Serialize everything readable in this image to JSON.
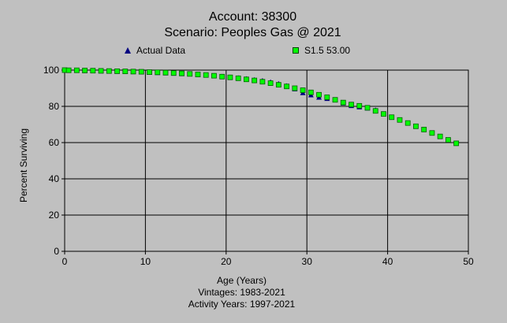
{
  "chart_data": {
    "type": "scatter",
    "title": "Account: 38300",
    "subtitle": "Scenario: Peoples Gas @ 2021",
    "xlabel": "Age (Years)",
    "ylabel": "Percent Surviving",
    "footer": [
      "Vintages: 1983-2021",
      "Activity Years: 1997-2021"
    ],
    "xlim": [
      0,
      50
    ],
    "ylim": [
      0,
      100
    ],
    "xticks": [
      0,
      10,
      20,
      30,
      40,
      50
    ],
    "yticks": [
      0,
      20,
      40,
      60,
      80,
      100
    ],
    "grid": true,
    "legend_position": "top",
    "series": [
      {
        "name": "Actual Data",
        "marker": "triangle",
        "color": "#000080",
        "x": [
          0,
          0.5,
          1.5,
          2.5,
          3.5,
          4.5,
          5.5,
          6.5,
          7.5,
          8.5,
          9.5,
          10.5,
          11.5,
          12.5,
          13.5,
          14.5,
          15.5,
          16.5,
          17.5,
          18.5,
          19.5,
          20.5,
          21.5,
          22.5,
          23.5,
          24.5,
          25.5,
          26.5,
          27.5,
          28.5,
          29.5,
          30.5,
          31.5,
          32.5,
          33.5,
          34.5,
          35.5,
          36.5,
          37.5,
          38.5
        ],
        "y": [
          100,
          99.9,
          99.8,
          99.7,
          99.6,
          99.5,
          99.4,
          99.3,
          99.2,
          99.1,
          98.9,
          98.8,
          98.6,
          98.4,
          98.2,
          98.0,
          97.8,
          97.5,
          97.2,
          96.9,
          96.5,
          96.1,
          95.7,
          95.2,
          94.7,
          94.2,
          93.4,
          92.5,
          91.3,
          89.6,
          87.5,
          86.3,
          85.0,
          84.3,
          83.5,
          81.8,
          80.4,
          79.7,
          79.0,
          78.0
        ]
      },
      {
        "name": "S1.5 53.00",
        "marker": "square",
        "color": "#00ff00",
        "x": [
          0,
          0.5,
          1.5,
          2.5,
          3.5,
          4.5,
          5.5,
          6.5,
          7.5,
          8.5,
          9.5,
          10.5,
          11.5,
          12.5,
          13.5,
          14.5,
          15.5,
          16.5,
          17.5,
          18.5,
          19.5,
          20.5,
          21.5,
          22.5,
          23.5,
          24.5,
          25.5,
          26.5,
          27.5,
          28.5,
          29.5,
          30.5,
          31.5,
          32.5,
          33.5,
          34.5,
          35.5,
          36.5,
          37.5,
          38.5,
          39.5,
          40.5,
          41.5,
          42.5,
          43.5,
          44.5,
          45.5,
          46.5,
          47.5,
          48.5
        ],
        "y": [
          100,
          99.9,
          99.9,
          99.8,
          99.7,
          99.6,
          99.5,
          99.4,
          99.3,
          99.2,
          99.1,
          98.9,
          98.8,
          98.6,
          98.4,
          98.2,
          97.9,
          97.6,
          97.3,
          96.9,
          96.4,
          96.0,
          95.5,
          94.9,
          94.3,
          93.6,
          92.8,
          91.9,
          91.0,
          90.0,
          88.9,
          87.7,
          86.4,
          85.0,
          83.6,
          82.1,
          81.0,
          80.3,
          79.2,
          77.5,
          75.8,
          74.0,
          72.5,
          70.8,
          69.0,
          67.2,
          65.3,
          63.4,
          61.5,
          59.6
        ]
      }
    ]
  }
}
